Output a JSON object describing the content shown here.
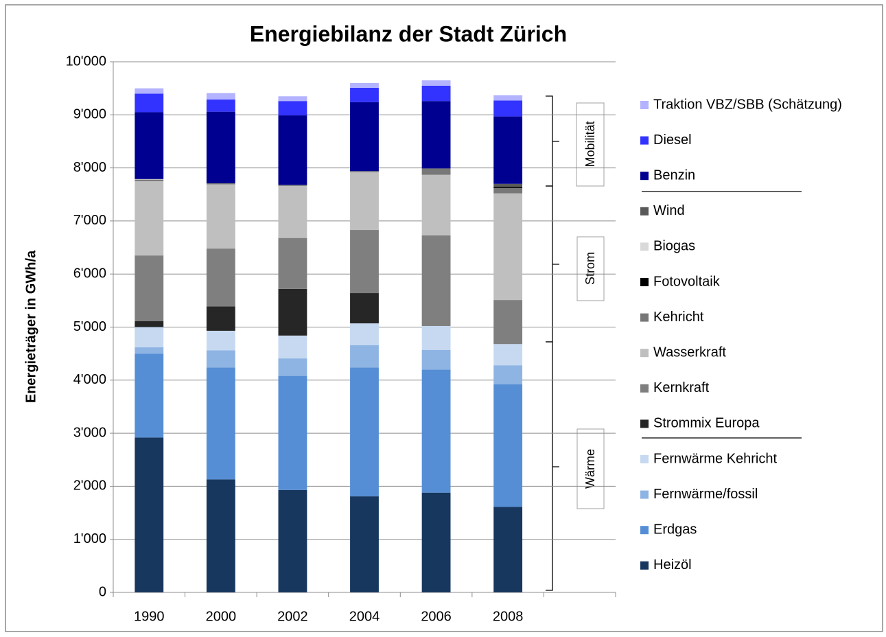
{
  "chart_data": {
    "type": "stacked_bar",
    "title": "Energiebilanz der Stadt Zürich",
    "y_label": "Energieträger in GWh/a",
    "categories": [
      "1990",
      "2000",
      "2002",
      "2004",
      "2006",
      "2008",
      null
    ],
    "ylim": [
      0,
      10000
    ],
    "yticks": [
      0,
      {
        "value": 1000,
        "label": "1'000"
      },
      {
        "value": 2000,
        "label": "2'000"
      },
      {
        "value": 3000,
        "label": "3'000"
      },
      {
        "value": 4000,
        "label": "4'000"
      },
      {
        "value": 5000,
        "label": "5'000"
      },
      {
        "value": 6000,
        "label": "6'000"
      },
      {
        "value": 7000,
        "label": "7'000"
      },
      {
        "value": 8000,
        "label": "8'000"
      },
      {
        "value": 9000,
        "label": "9'000"
      },
      {
        "value": 10000,
        "label": "10'000"
      }
    ],
    "grid": true,
    "legend": "right",
    "groups": [
      "Mobilität",
      "Strom",
      "Wärme"
    ],
    "series": [
      {
        "name": "Heizöl",
        "color": "#17375e",
        "values": [
          2920,
          2130,
          1930,
          1810,
          1880,
          1610,
          null
        ]
      },
      {
        "name": "Erdgas",
        "color": "#558ed5",
        "values": [
          1580,
          2110,
          2150,
          2430,
          2320,
          2310,
          null
        ]
      },
      {
        "name": "Fernwärme/fossil",
        "color": "#8eb4e3",
        "values": [
          120,
          320,
          330,
          420,
          370,
          360,
          null
        ]
      },
      {
        "name": "Fernwärme Kehricht",
        "color": "#c6d9f1",
        "values": [
          380,
          370,
          430,
          410,
          450,
          400,
          null
        ]
      },
      {
        "name": "Strommix Europa",
        "color": "#262626",
        "values": [
          110,
          460,
          880,
          570,
          0,
          0,
          null
        ]
      },
      {
        "name": "Kernkraft",
        "color": "#7f7f7f",
        "values": [
          1240,
          1090,
          960,
          1190,
          1710,
          830,
          null
        ]
      },
      {
        "name": "Wasserkraft",
        "color": "#bfbfbf",
        "values": [
          1400,
          1210,
          980,
          1090,
          1140,
          2010,
          null
        ]
      },
      {
        "name": "Kehricht",
        "color": "#777777",
        "values": [
          30,
          20,
          20,
          20,
          120,
          100,
          null
        ]
      },
      {
        "name": "Fotovoltaik",
        "color": "#000000",
        "values": [
          0,
          0,
          0,
          0,
          0,
          20,
          null
        ]
      },
      {
        "name": "Biogas",
        "color": "#d9d9d9",
        "values": [
          10,
          0,
          0,
          0,
          0,
          0,
          null
        ]
      },
      {
        "name": "Wind",
        "color": "#595959",
        "values": [
          0,
          0,
          0,
          0,
          0,
          60,
          null
        ]
      },
      {
        "name": "Benzin",
        "color": "#000090",
        "values": [
          1260,
          1350,
          1310,
          1300,
          1270,
          1270,
          null
        ]
      },
      {
        "name": "Diesel",
        "color": "#3333ff",
        "values": [
          350,
          230,
          270,
          270,
          290,
          300,
          null
        ]
      },
      {
        "name": "Traktion VBZ/SBB (Schätzung)",
        "color": "#b3b3ff",
        "values": [
          100,
          120,
          90,
          90,
          100,
          100,
          null
        ]
      }
    ]
  }
}
